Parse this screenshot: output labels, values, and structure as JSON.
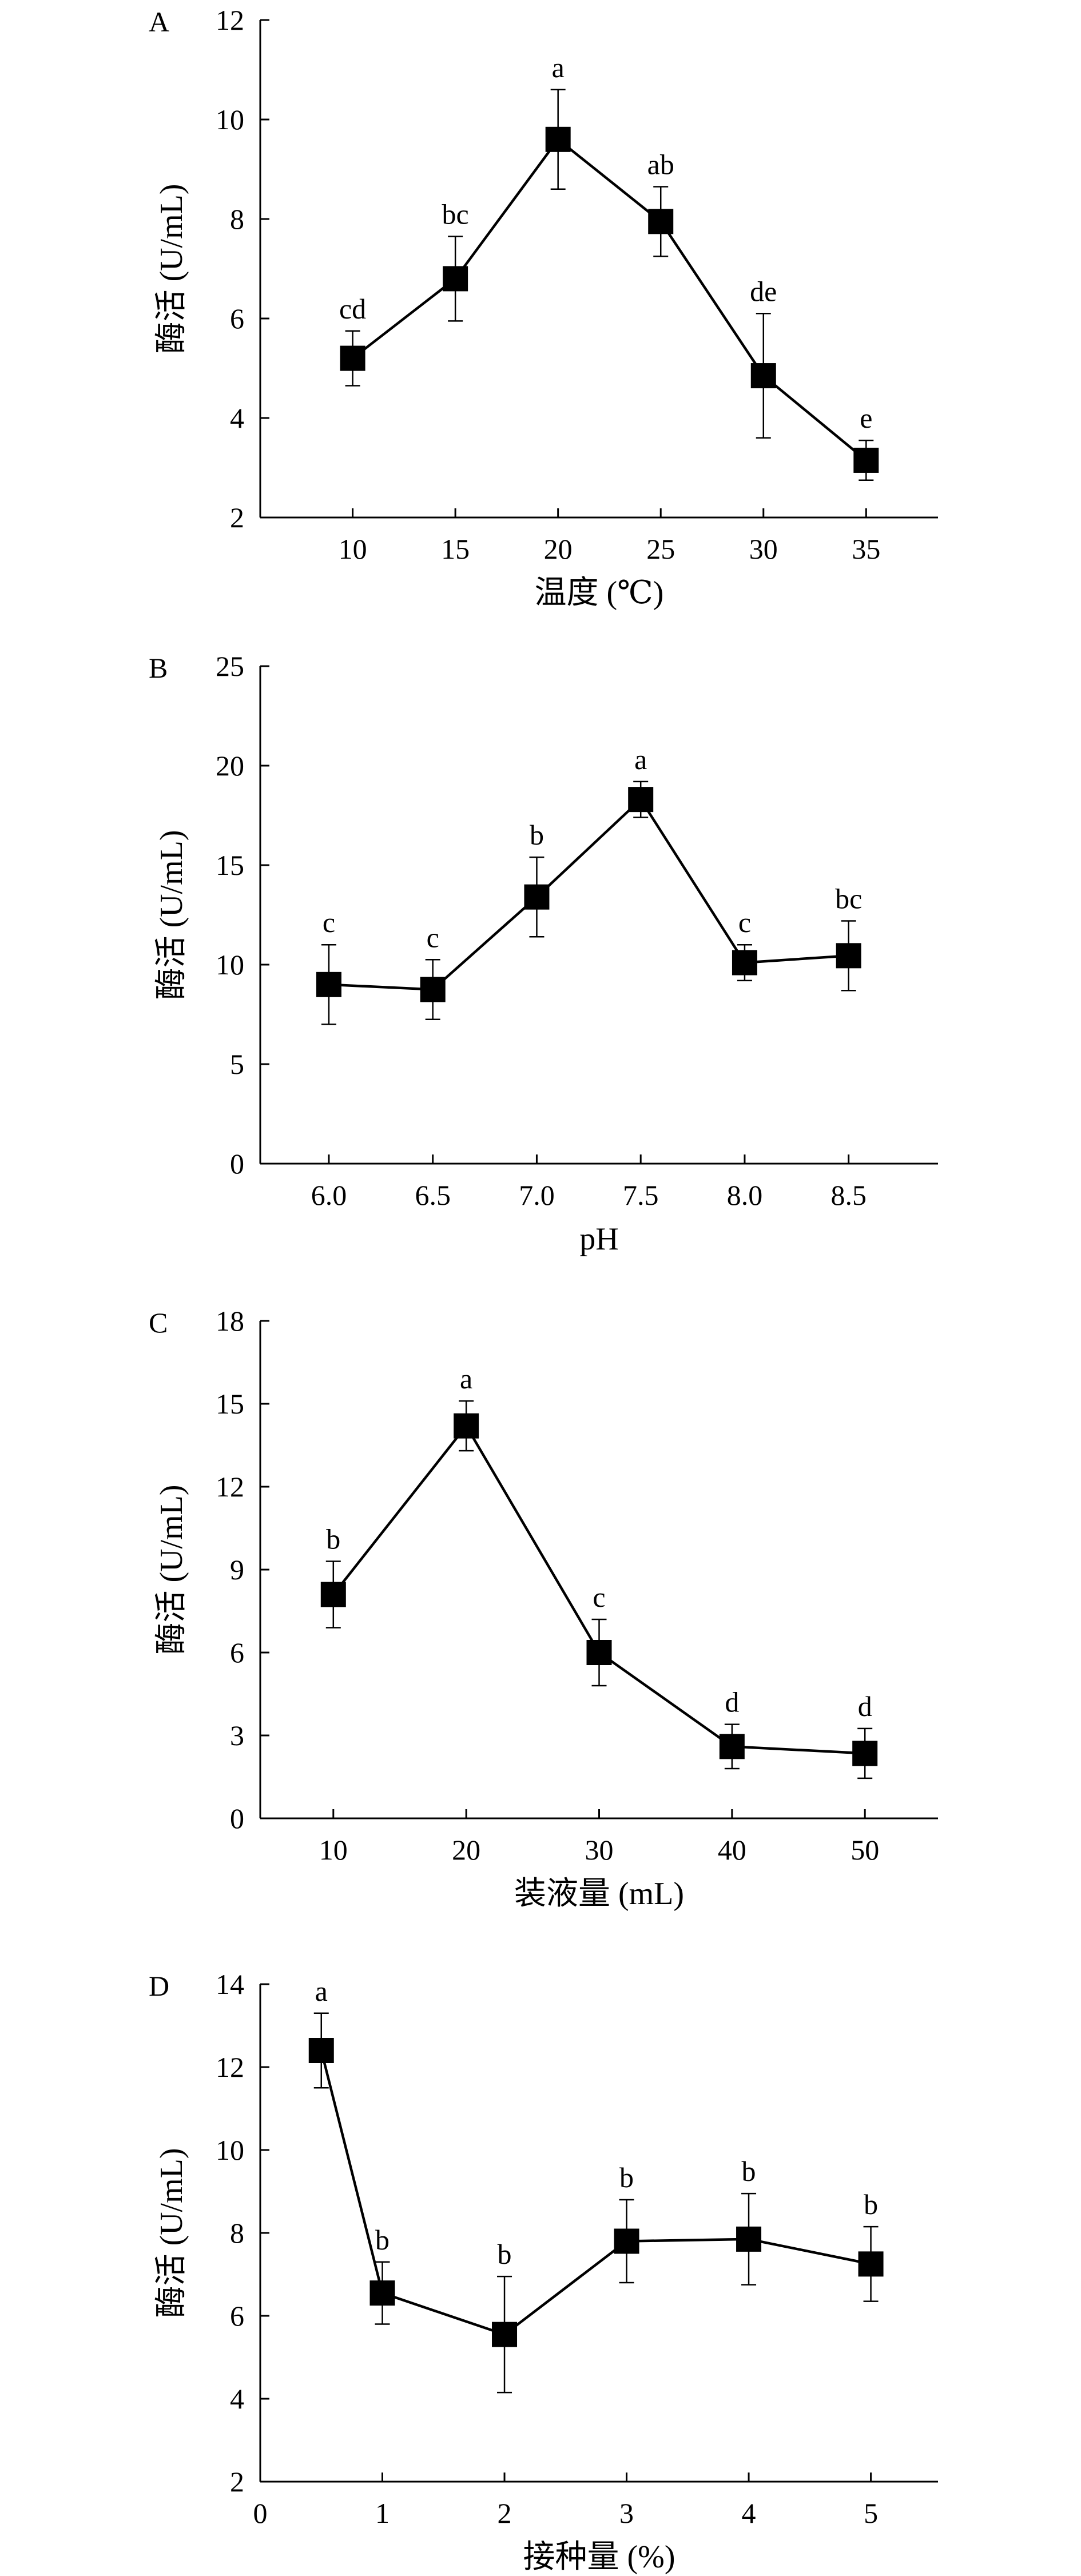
{
  "chart_data": [
    {
      "panel": "A",
      "type": "line",
      "xlabel": "温度 (℃)",
      "ylabel": "酶活 (U/mL)",
      "x": [
        10,
        15,
        20,
        25,
        30,
        35
      ],
      "x_tick_labels": [
        "10",
        "15",
        "20",
        "25",
        "30",
        "35"
      ],
      "xlim": [
        5.5,
        38.5
      ],
      "values": [
        5.2,
        6.8,
        9.6,
        7.95,
        4.85,
        3.15
      ],
      "errors": [
        0.55,
        0.85,
        1.0,
        0.7,
        1.25,
        0.4
      ],
      "significance": [
        "cd",
        "bc",
        "a",
        "ab",
        "de",
        "e"
      ],
      "ylim": [
        2,
        12
      ],
      "yticks": [
        2,
        4,
        6,
        8,
        10,
        12
      ]
    },
    {
      "panel": "B",
      "type": "line",
      "xlabel": "pH",
      "ylabel": "酶活 (U/mL)",
      "x": [
        6.0,
        6.5,
        7.0,
        7.5,
        8.0,
        8.5
      ],
      "x_tick_labels": [
        "6.0",
        "6.5",
        "7.0",
        "7.5",
        "8.0",
        "8.5"
      ],
      "xlim": [
        5.67,
        8.93
      ],
      "values": [
        9.0,
        8.75,
        13.4,
        18.3,
        10.1,
        10.45
      ],
      "errors": [
        2.0,
        1.5,
        2.0,
        0.9,
        0.9,
        1.75
      ],
      "significance": [
        "c",
        "c",
        "b",
        "a",
        "c",
        "bc"
      ],
      "ylim": [
        0,
        25
      ],
      "yticks": [
        0,
        5,
        10,
        15,
        20,
        25
      ]
    },
    {
      "panel": "C",
      "type": "line",
      "xlabel": "装液量 (mL)",
      "ylabel": "酶活 (U/mL)",
      "x": [
        10,
        20,
        30,
        40,
        50
      ],
      "x_tick_labels": [
        "10",
        "20",
        "30",
        "40",
        "50"
      ],
      "xlim": [
        4.5,
        55.5
      ],
      "values": [
        8.1,
        14.2,
        6.0,
        2.6,
        2.35
      ],
      "errors": [
        1.2,
        0.9,
        1.2,
        0.8,
        0.9
      ],
      "significance": [
        "b",
        "a",
        "c",
        "d",
        "d"
      ],
      "ylim": [
        0,
        18
      ],
      "yticks": [
        0,
        3,
        6,
        9,
        12,
        15,
        18
      ]
    },
    {
      "panel": "D",
      "type": "line",
      "xlabel": "接种量 (%)",
      "ylabel": "酶活 (U/mL)",
      "x": [
        0.5,
        1,
        2,
        3,
        4,
        5
      ],
      "x_tick_labels": [
        "0",
        "1",
        "2",
        "3",
        "4",
        "5"
      ],
      "xticks": [
        0,
        1,
        2,
        3,
        4,
        5
      ],
      "xlim": [
        0,
        5.55
      ],
      "values": [
        12.4,
        6.55,
        5.55,
        7.8,
        7.85,
        7.25
      ],
      "errors": [
        0.9,
        0.75,
        1.4,
        1.0,
        1.1,
        0.9
      ],
      "significance": [
        "a",
        "b",
        "b",
        "b",
        "b",
        "b"
      ],
      "ylim": [
        2,
        14
      ],
      "yticks": [
        2,
        4,
        6,
        8,
        10,
        12,
        14
      ]
    }
  ]
}
